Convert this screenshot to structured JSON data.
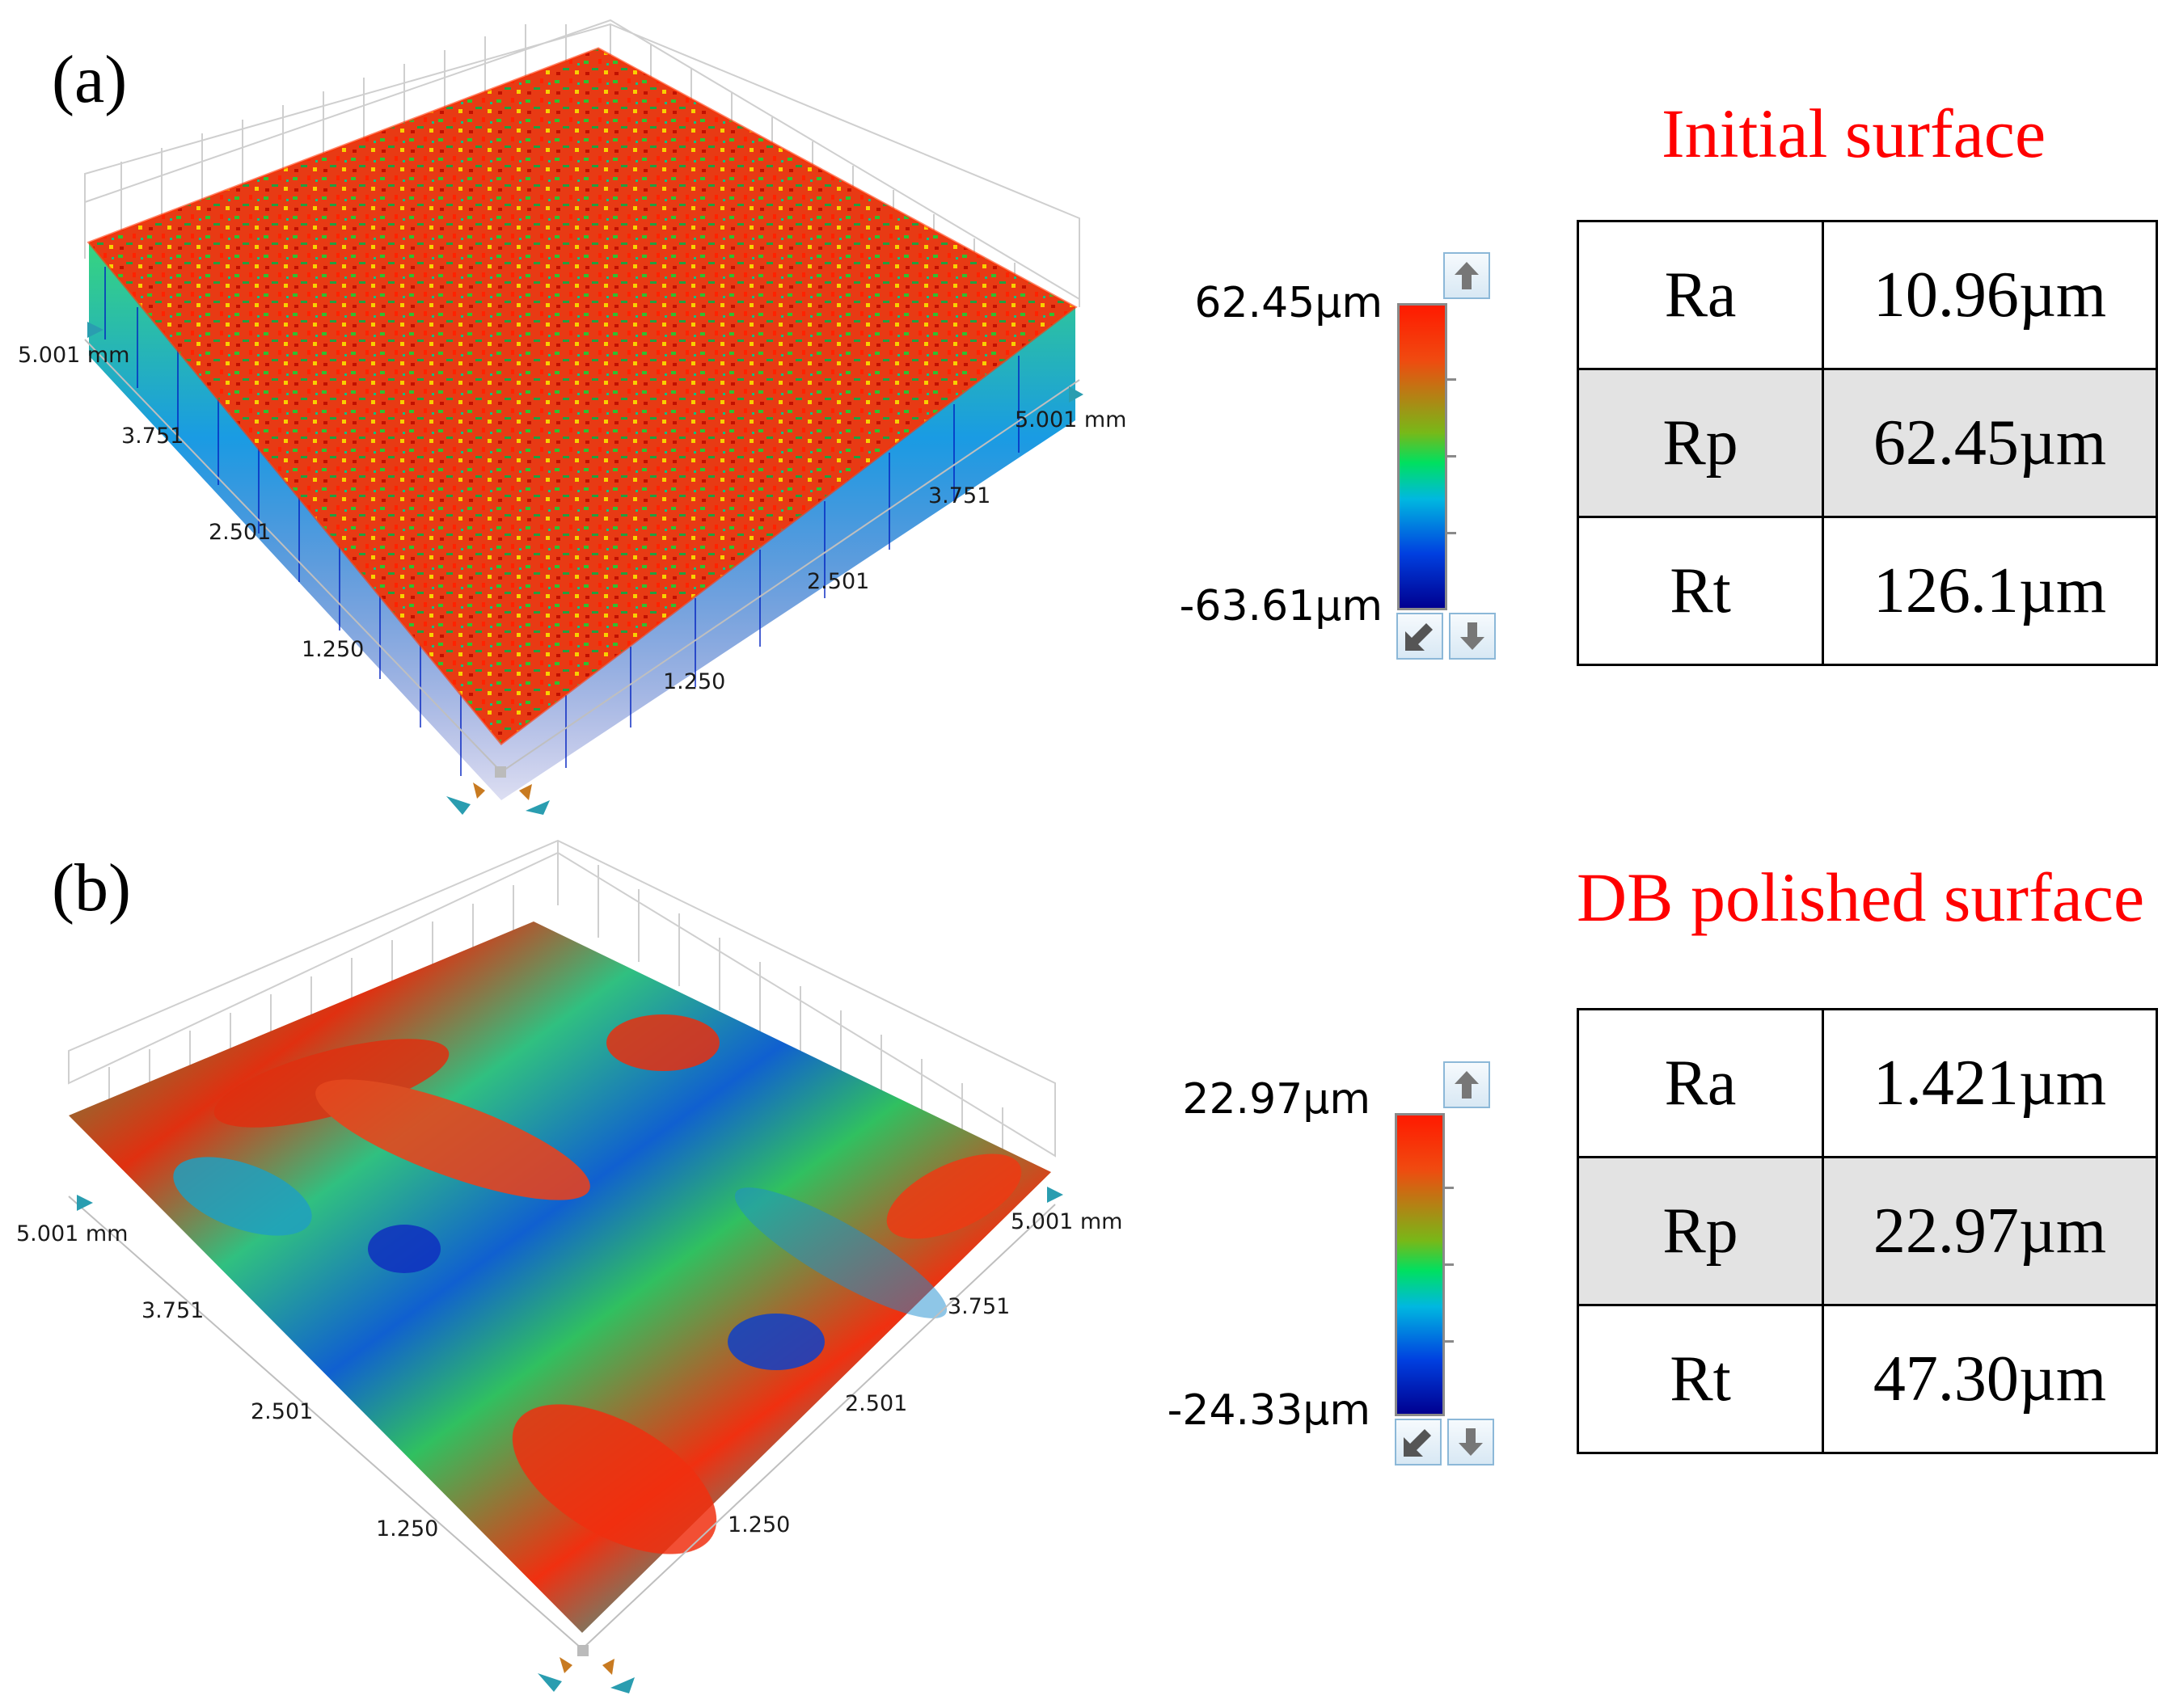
{
  "panels": [
    {
      "id": "a",
      "label": "(a)",
      "title": "Initial surface",
      "axis": {
        "left_max": "5.001 mm",
        "right_max": "5.001 mm",
        "left_ticks": [
          "3.751",
          "2.501",
          "1.250"
        ],
        "right_ticks": [
          "3.751",
          "2.501",
          "1.250"
        ]
      },
      "scale": {
        "max": "62.45µm",
        "min": "-63.61µm"
      },
      "parameters": [
        {
          "name": "Ra",
          "value": "10.96µm"
        },
        {
          "name": "Rp",
          "value": "62.45µm"
        },
        {
          "name": "Rt",
          "value": "126.1µm"
        }
      ]
    },
    {
      "id": "b",
      "label": "(b)",
      "title": "DB polished surface",
      "axis": {
        "left_max": "5.001 mm",
        "right_max": "5.001 mm",
        "left_ticks": [
          "3.751",
          "2.501",
          "1.250"
        ],
        "right_ticks": [
          "3.751",
          "2.501",
          "1.250"
        ]
      },
      "scale": {
        "max": "22.97µm",
        "min": "-24.33µm"
      },
      "parameters": [
        {
          "name": "Ra",
          "value": "1.421µm"
        },
        {
          "name": "Rp",
          "value": "22.97µm"
        },
        {
          "name": "Rt",
          "value": "47.30µm"
        }
      ]
    }
  ],
  "colors": {
    "title": "#ff0000",
    "high": "#ff1a00",
    "mid": "#00e060",
    "low": "#000090",
    "table_shade": "#e3e3e3",
    "button_border": "#8cb8d8"
  },
  "icons": {
    "scale_up": "arrow-up-icon",
    "scale_down": "arrow-down-icon",
    "scale_reset": "arrow-diagonal-icon",
    "rotate": "rotate-handle-icon"
  }
}
